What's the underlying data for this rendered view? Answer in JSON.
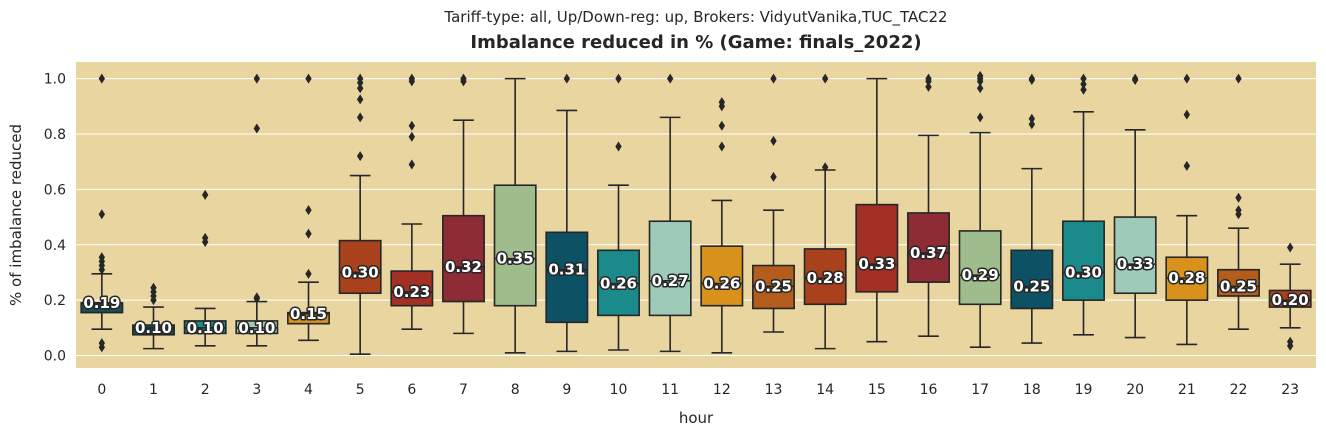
{
  "chart_data": {
    "type": "box",
    "suptitle": "Tariff-type: all, Up/Down-reg: up, Brokers: VidyutVanika,TUC_TAC22",
    "title": "Imbalance reduced in % (Game: finals_2022)",
    "xlabel": "hour",
    "ylabel": "% of imbalance reduced",
    "ylim": [
      -0.045,
      1.06
    ],
    "yticks": [
      "0.0",
      "0.2",
      "0.4",
      "0.6",
      "0.8",
      "1.0"
    ],
    "ytick_values": [
      0.0,
      0.2,
      0.4,
      0.6,
      0.8,
      1.0
    ],
    "grid": "horizontal",
    "background": "#e8d5a0",
    "categories": [
      "0",
      "1",
      "2",
      "3",
      "4",
      "5",
      "6",
      "7",
      "8",
      "9",
      "10",
      "11",
      "12",
      "13",
      "14",
      "15",
      "16",
      "17",
      "18",
      "19",
      "20",
      "21",
      "22",
      "23"
    ],
    "boxes": [
      {
        "whislo": 0.095,
        "q1": 0.155,
        "med": 0.19,
        "q3": 0.19,
        "whishi": 0.295,
        "median_label": "0.19",
        "color": "#1a4f5c",
        "fliers": [
          0.03,
          0.045,
          0.31,
          0.325,
          0.34,
          0.355,
          0.51,
          1.0
        ]
      },
      {
        "whislo": 0.025,
        "q1": 0.075,
        "med": 0.1,
        "q3": 0.11,
        "whishi": 0.175,
        "median_label": "0.10",
        "color": "#0d5264",
        "fliers": [
          0.2,
          0.215,
          0.23,
          0.245
        ]
      },
      {
        "whislo": 0.035,
        "q1": 0.08,
        "med": 0.1,
        "q3": 0.125,
        "whishi": 0.17,
        "median_label": "0.10",
        "color": "#1a8a8a",
        "fliers": [
          0.41,
          0.425,
          0.58
        ]
      },
      {
        "whislo": 0.035,
        "q1": 0.08,
        "med": 0.1,
        "q3": 0.125,
        "whishi": 0.195,
        "median_label": "0.10",
        "color": "#9ecab8",
        "fliers": [
          0.205,
          0.21,
          0.82,
          1.0
        ]
      },
      {
        "whislo": 0.055,
        "q1": 0.115,
        "med": 0.15,
        "q3": 0.155,
        "whishi": 0.265,
        "median_label": "0.15",
        "color": "#d8921c",
        "fliers": [
          0.295,
          0.44,
          0.525,
          1.0
        ]
      },
      {
        "whislo": 0.005,
        "q1": 0.225,
        "med": 0.3,
        "q3": 0.415,
        "whishi": 0.65,
        "median_label": "0.30",
        "color": "#a8411c",
        "fliers": [
          0.72,
          0.86,
          0.925,
          0.965,
          0.985,
          1.0
        ]
      },
      {
        "whislo": 0.095,
        "q1": 0.18,
        "med": 0.23,
        "q3": 0.305,
        "whishi": 0.475,
        "median_label": "0.23",
        "color": "#a33024",
        "fliers": [
          0.69,
          0.79,
          0.83,
          0.99,
          1.0
        ]
      },
      {
        "whislo": 0.08,
        "q1": 0.195,
        "med": 0.32,
        "q3": 0.505,
        "whishi": 0.85,
        "median_label": "0.32",
        "color": "#8e2c36",
        "fliers": [
          0.99,
          1.0
        ]
      },
      {
        "whislo": 0.01,
        "q1": 0.18,
        "med": 0.35,
        "q3": 0.615,
        "whishi": 1.0,
        "median_label": "0.35",
        "color": "#9ebc8c",
        "fliers": []
      },
      {
        "whislo": 0.015,
        "q1": 0.12,
        "med": 0.31,
        "q3": 0.445,
        "whishi": 0.885,
        "median_label": "0.31",
        "color": "#0d5264",
        "fliers": [
          1.0
        ]
      },
      {
        "whislo": 0.02,
        "q1": 0.145,
        "med": 0.26,
        "q3": 0.38,
        "whishi": 0.615,
        "median_label": "0.26",
        "color": "#1a8a8a",
        "fliers": [
          0.755,
          1.0
        ]
      },
      {
        "whislo": 0.015,
        "q1": 0.145,
        "med": 0.27,
        "q3": 0.485,
        "whishi": 0.86,
        "median_label": "0.27",
        "color": "#9ecab8",
        "fliers": [
          1.0
        ]
      },
      {
        "whislo": 0.01,
        "q1": 0.18,
        "med": 0.26,
        "q3": 0.395,
        "whishi": 0.56,
        "median_label": "0.26",
        "color": "#d8921c",
        "fliers": [
          0.755,
          0.83,
          0.9,
          0.915
        ]
      },
      {
        "whislo": 0.085,
        "q1": 0.17,
        "med": 0.25,
        "q3": 0.325,
        "whishi": 0.525,
        "median_label": "0.25",
        "color": "#b35c1c",
        "fliers": [
          0.645,
          0.775,
          1.0
        ]
      },
      {
        "whislo": 0.025,
        "q1": 0.185,
        "med": 0.28,
        "q3": 0.385,
        "whishi": 0.67,
        "median_label": "0.28",
        "color": "#a8411c",
        "fliers": [
          0.68,
          1.0
        ]
      },
      {
        "whislo": 0.05,
        "q1": 0.23,
        "med": 0.33,
        "q3": 0.545,
        "whishi": 1.0,
        "median_label": "0.33",
        "color": "#a33024",
        "fliers": []
      },
      {
        "whislo": 0.07,
        "q1": 0.265,
        "med": 0.37,
        "q3": 0.515,
        "whishi": 0.795,
        "median_label": "0.37",
        "color": "#8e2c36",
        "fliers": [
          0.97,
          0.99,
          1.0
        ]
      },
      {
        "whislo": 0.03,
        "q1": 0.185,
        "med": 0.29,
        "q3": 0.45,
        "whishi": 0.805,
        "median_label": "0.29",
        "color": "#9ebc8c",
        "fliers": [
          0.86,
          0.965,
          0.99,
          1.0,
          1.01
        ]
      },
      {
        "whislo": 0.045,
        "q1": 0.17,
        "med": 0.25,
        "q3": 0.38,
        "whishi": 0.675,
        "median_label": "0.25",
        "color": "#0d5264",
        "fliers": [
          0.835,
          0.855,
          0.995,
          1.0
        ]
      },
      {
        "whislo": 0.075,
        "q1": 0.2,
        "med": 0.3,
        "q3": 0.485,
        "whishi": 0.88,
        "median_label": "0.30",
        "color": "#1a8a8a",
        "fliers": [
          0.96,
          0.98,
          1.0
        ]
      },
      {
        "whislo": 0.065,
        "q1": 0.225,
        "med": 0.33,
        "q3": 0.5,
        "whishi": 0.815,
        "median_label": "0.33",
        "color": "#9ecab8",
        "fliers": [
          0.995,
          1.0
        ]
      },
      {
        "whislo": 0.04,
        "q1": 0.2,
        "med": 0.28,
        "q3": 0.355,
        "whishi": 0.505,
        "median_label": "0.28",
        "color": "#d8921c",
        "fliers": [
          0.685,
          0.87,
          1.0
        ]
      },
      {
        "whislo": 0.095,
        "q1": 0.215,
        "med": 0.25,
        "q3": 0.31,
        "whishi": 0.46,
        "median_label": "0.25",
        "color": "#b35c1c",
        "fliers": [
          0.51,
          0.525,
          0.57,
          1.0
        ]
      },
      {
        "whislo": 0.1,
        "q1": 0.175,
        "med": 0.2,
        "q3": 0.235,
        "whishi": 0.33,
        "median_label": "0.20",
        "color": "#a8411c",
        "fliers": [
          0.035,
          0.05,
          0.39
        ]
      }
    ]
  }
}
